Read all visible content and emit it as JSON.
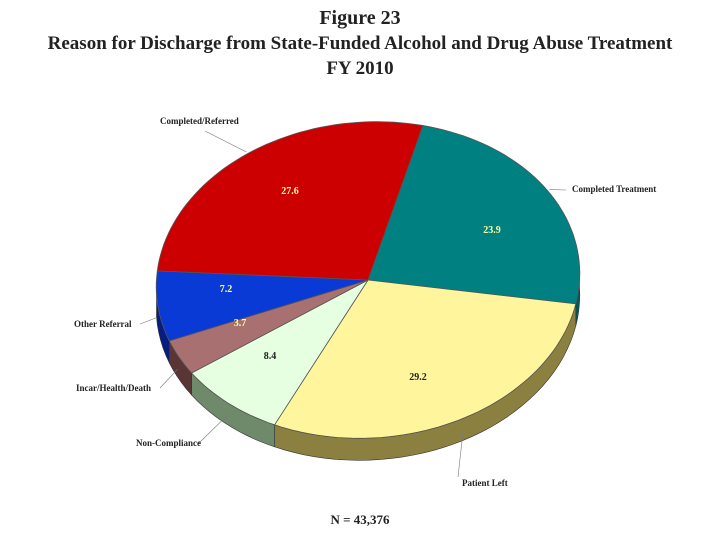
{
  "chart_data": {
    "type": "pie",
    "title_lines": [
      "Figure 23",
      "Reason for Discharge from State-Funded Alcohol and Drug Abuse Treatment",
      "FY 2010"
    ],
    "unit": "percent",
    "slices": [
      {
        "name": "Completed Treatment",
        "value": 23.9,
        "display": "23.9",
        "color": "#008080",
        "side_color": "#005a5a",
        "value_color": "#ffff99"
      },
      {
        "name": "Patient Left",
        "value": 29.2,
        "display": "29.2",
        "color": "#fff59d",
        "side_color": "#8c8040",
        "value_color": "#222222"
      },
      {
        "name": "Non-Compliance",
        "value": 8.4,
        "display": "8.4",
        "color": "#e6ffe0",
        "side_color": "#6f8a6a",
        "value_color": "#222222"
      },
      {
        "name": "Incar/Health/Death",
        "value": 3.7,
        "display": "3.7",
        "color": "#a87070",
        "side_color": "#5a3535",
        "value_color": "#ffff99"
      },
      {
        "name": "Other Referral",
        "value": 7.2,
        "display": "7.2",
        "color": "#0a3ad6",
        "side_color": "#061c80",
        "value_color": "#ffff99"
      },
      {
        "name": "Completed/Referred",
        "value": 27.6,
        "display": "27.6",
        "color": "#cc0000",
        "side_color": "#6b0000",
        "value_color": "#ffff99"
      }
    ],
    "footnote": "N = 43,376"
  }
}
